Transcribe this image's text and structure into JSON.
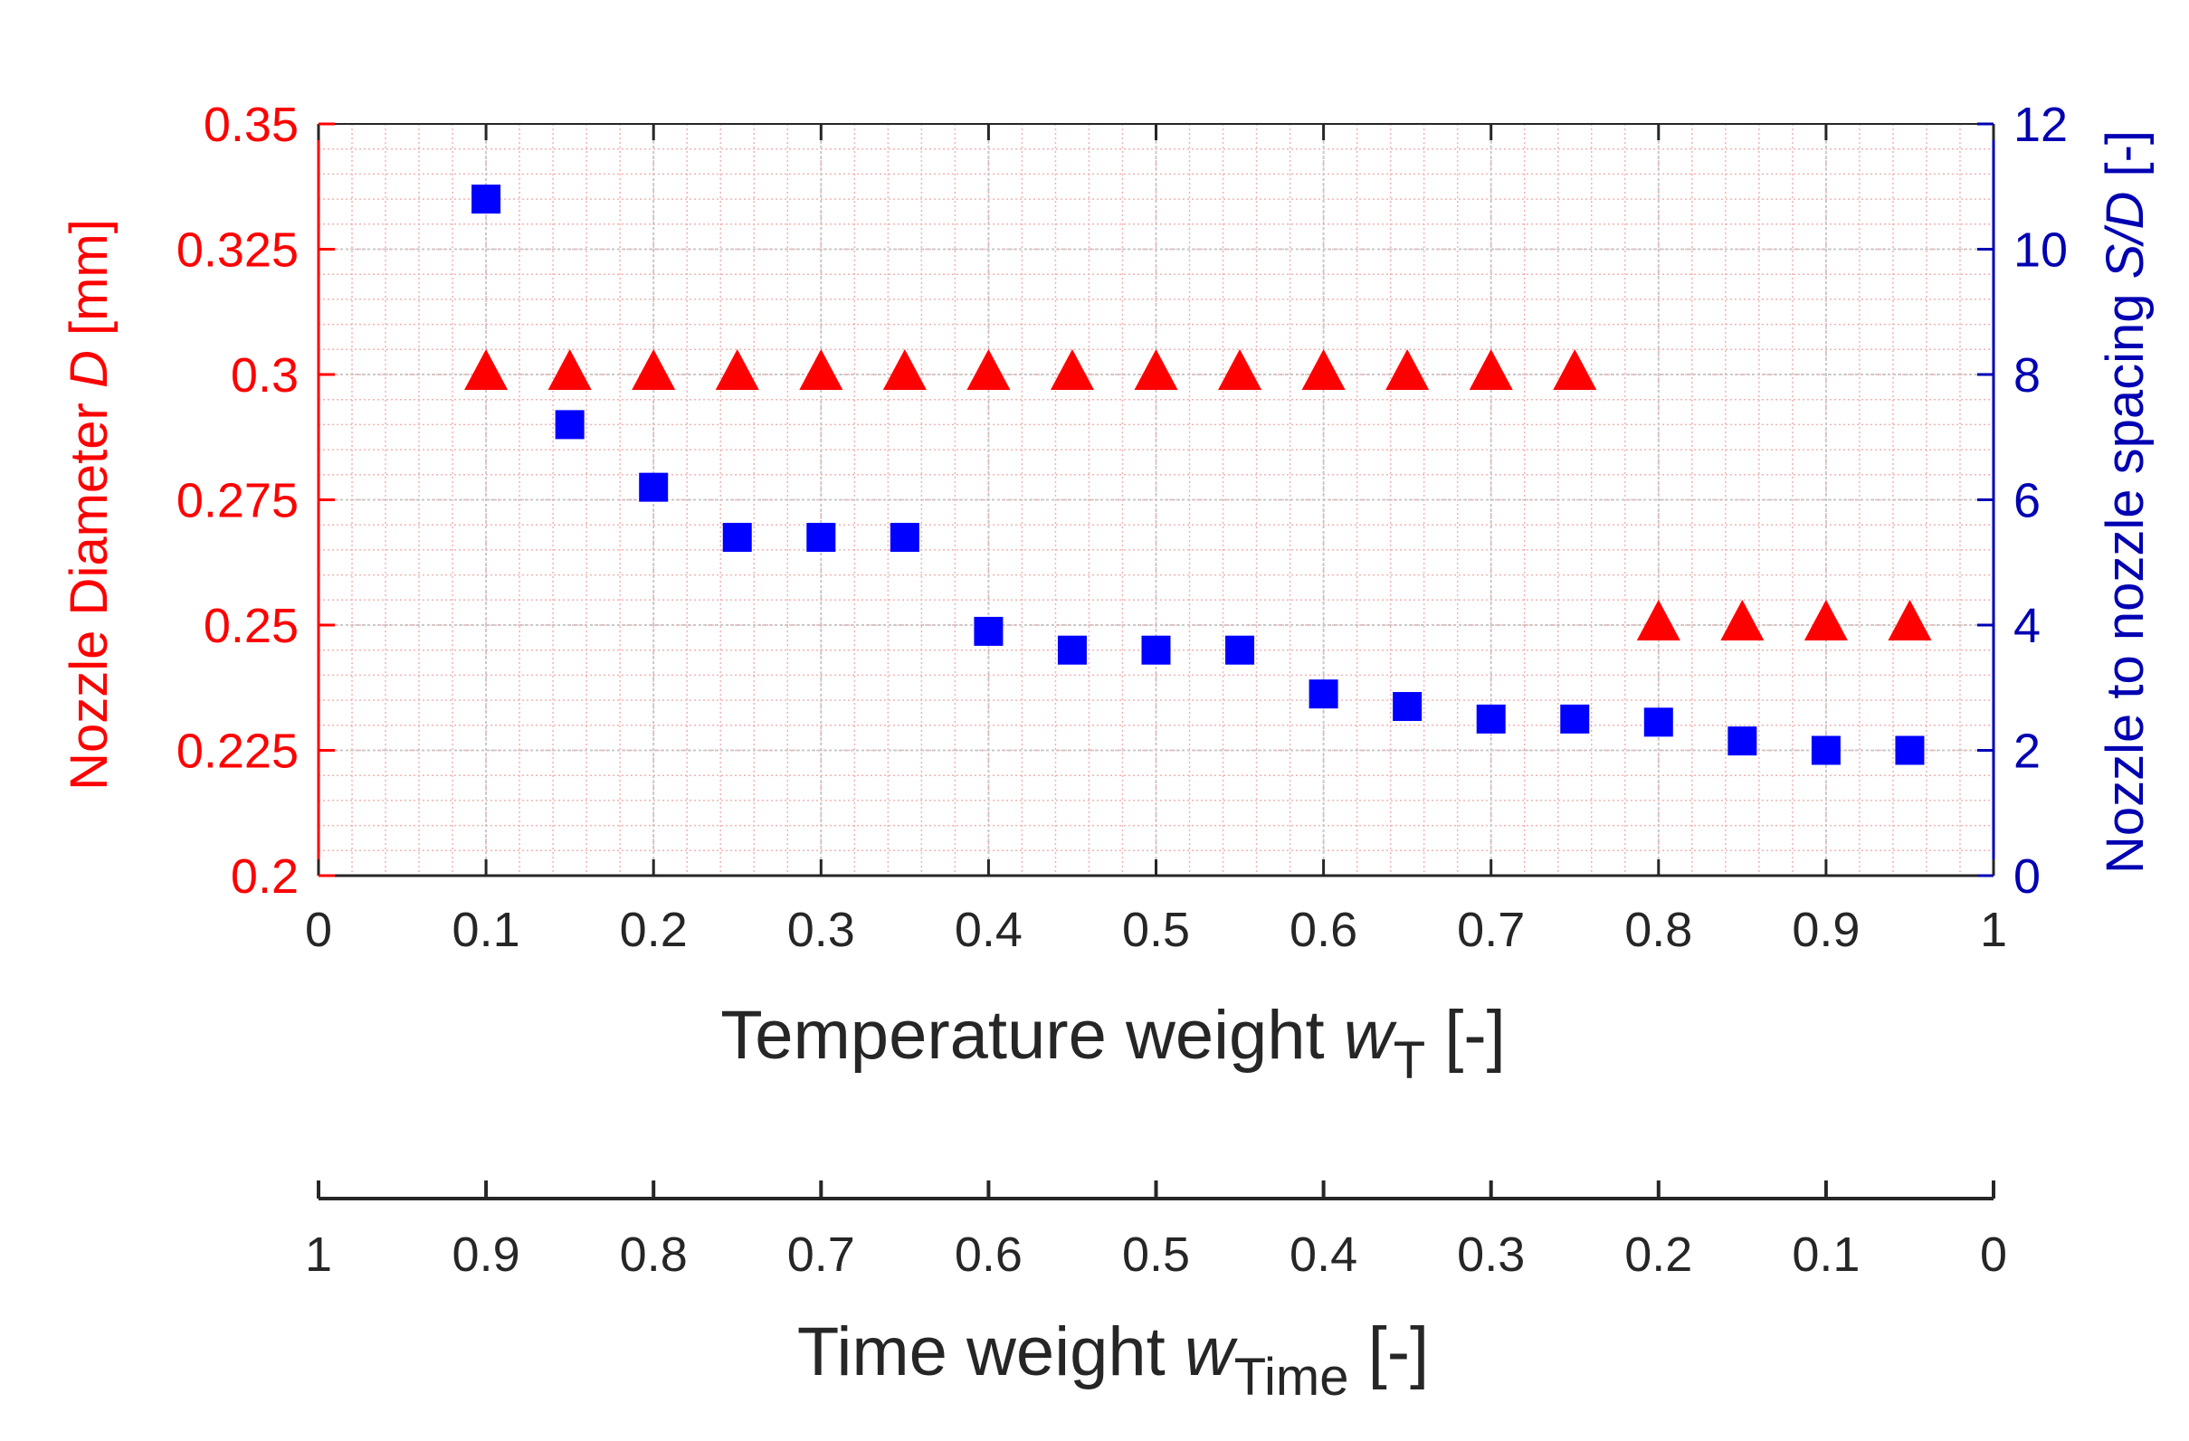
{
  "colors": {
    "left_axis": "#ff0000",
    "right_axis": "#0000b3",
    "triangle": "#ff0000",
    "square": "#0000ff",
    "text": "#262626",
    "grid_major": "#c8c8c8",
    "grid_minor": "#f2b3b3"
  },
  "chart_data": {
    "type": "scatter",
    "xlabel": "Temperature weight w_T [-]",
    "xlabel_main": "Temperature weight ",
    "xlabel_var": "w",
    "xlabel_sub": "T",
    "xlabel_unit": " [-]",
    "x2label_main": "Time weight ",
    "x2label_var": "w",
    "x2label_sub": "Time",
    "x2label_unit": " [-]",
    "ylabel_left_main": "Nozzle Diameter ",
    "ylabel_left_var": "D",
    "ylabel_left_unit": " [mm]",
    "ylabel_right_main": "Nozzle to nozzle spacing ",
    "ylabel_right_var": "S/D",
    "ylabel_right_unit": " [-]",
    "xlim": [
      0,
      1
    ],
    "ylim_left": [
      0.2,
      0.35
    ],
    "ylim_right": [
      0,
      12
    ],
    "x_ticks": [
      "0",
      "0.1",
      "0.2",
      "0.3",
      "0.4",
      "0.5",
      "0.6",
      "0.7",
      "0.8",
      "0.9",
      "1"
    ],
    "x2_ticks": [
      "1",
      "0.9",
      "0.8",
      "0.7",
      "0.6",
      "0.5",
      "0.4",
      "0.3",
      "0.2",
      "0.1",
      "0"
    ],
    "y_left_ticks": [
      "0.2",
      "0.225",
      "0.25",
      "0.275",
      "0.3",
      "0.325",
      "0.35"
    ],
    "y_right_ticks": [
      "0",
      "2",
      "4",
      "6",
      "8",
      "10",
      "12"
    ],
    "grid": true,
    "series": [
      {
        "name": "Nozzle Diameter D",
        "axis": "left",
        "marker": "triangle",
        "x": [
          0.1,
          0.15,
          0.2,
          0.25,
          0.3,
          0.35,
          0.4,
          0.45,
          0.5,
          0.55,
          0.6,
          0.65,
          0.7,
          0.75,
          0.8,
          0.85,
          0.9,
          0.95
        ],
        "y": [
          0.3,
          0.3,
          0.3,
          0.3,
          0.3,
          0.3,
          0.3,
          0.3,
          0.3,
          0.3,
          0.3,
          0.3,
          0.3,
          0.3,
          0.25,
          0.25,
          0.25,
          0.25
        ]
      },
      {
        "name": "Nozzle to nozzle spacing S/D",
        "axis": "right",
        "marker": "square",
        "x": [
          0.1,
          0.15,
          0.2,
          0.25,
          0.3,
          0.35,
          0.4,
          0.45,
          0.5,
          0.55,
          0.6,
          0.65,
          0.7,
          0.75,
          0.8,
          0.85,
          0.9,
          0.95
        ],
        "y": [
          10.8,
          7.2,
          6.2,
          5.4,
          5.4,
          5.4,
          3.9,
          3.6,
          3.6,
          3.6,
          2.9,
          2.7,
          2.5,
          2.5,
          2.45,
          2.15,
          2.0,
          2.0
        ]
      }
    ]
  }
}
